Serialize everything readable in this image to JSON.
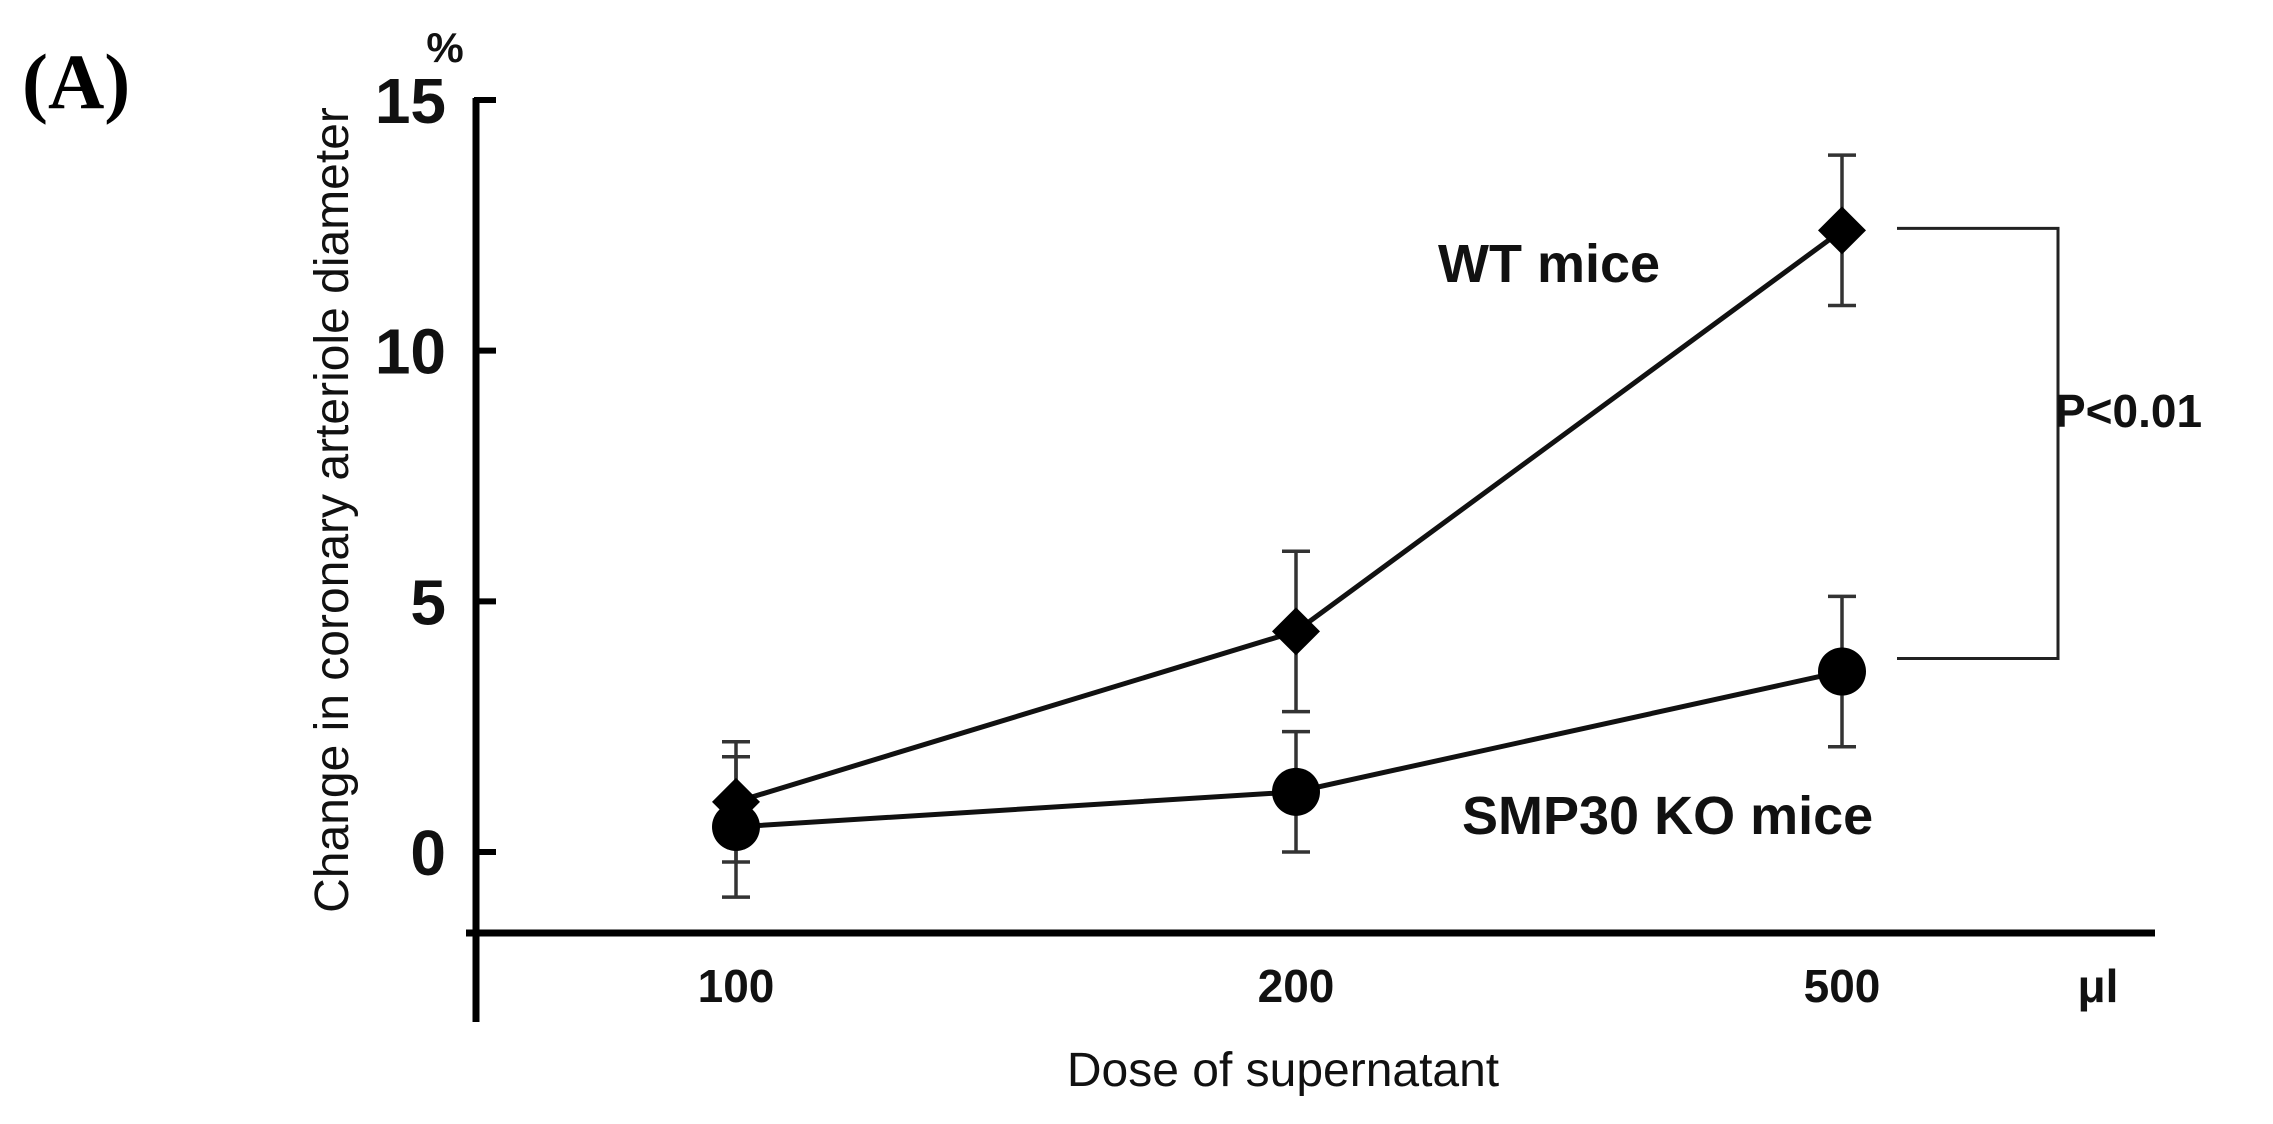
{
  "panel_label": "(A)",
  "chart_data": {
    "type": "line",
    "xlabel": "Dose of supernatant",
    "ylabel": "Change in coronary arteriole diameter",
    "x_unit": "μl",
    "y_unit": "%",
    "categories": [
      "100",
      "200",
      "500"
    ],
    "ylim": [
      -1.6,
      15
    ],
    "yticks": [
      0,
      5,
      10,
      15
    ],
    "series": [
      {
        "name": "WT mice",
        "marker": "diamond",
        "values": [
          1.0,
          4.4,
          12.4
        ],
        "error": [
          1.2,
          1.6,
          1.5
        ]
      },
      {
        "name": "SMP30 KO mice",
        "marker": "circle",
        "values": [
          0.5,
          1.2,
          3.6
        ],
        "error": [
          1.4,
          1.2,
          1.5
        ]
      }
    ],
    "annotation": {
      "text": "P<0.01"
    },
    "grid": false,
    "legend": "inline labels"
  }
}
